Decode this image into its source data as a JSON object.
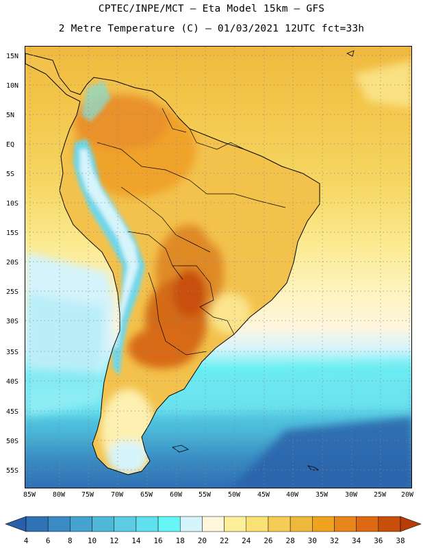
{
  "header": {
    "title": "CPTEC/INPE/MCT –  Eta Model 15km – GFS",
    "subtitle": "2 Metre Temperature (C) – 01/03/2021 12UTC fct=33h"
  },
  "map": {
    "region": "South America",
    "variable": "2 Metre Temperature",
    "units": "C",
    "lat_labels": [
      "15N",
      "10N",
      "5N",
      "EQ",
      "5S",
      "10S",
      "15S",
      "20S",
      "25S",
      "30S",
      "35S",
      "40S",
      "45S",
      "50S",
      "55S"
    ],
    "lon_labels": [
      "85W",
      "80W",
      "75W",
      "70W",
      "65W",
      "60W",
      "55W",
      "50W",
      "45W",
      "40W",
      "35W",
      "30W",
      "25W",
      "20W"
    ]
  },
  "legend": {
    "labels": [
      "4",
      "6",
      "8",
      "10",
      "12",
      "14",
      "16",
      "18",
      "20",
      "22",
      "24",
      "26",
      "28",
      "30",
      "32",
      "34",
      "36",
      "38"
    ],
    "colors": [
      "#2a5ea8",
      "#2f73b6",
      "#3a8bc4",
      "#45a3cf",
      "#4fb7d8",
      "#5ccbe3",
      "#60e0ee",
      "#66f6f6",
      "#d6f4fb",
      "#fff6dc",
      "#fdef9a",
      "#f9e174",
      "#f5cd56",
      "#edb93c",
      "#f0a31e",
      "#e6861c",
      "#dd6a12",
      "#c74f0a",
      "#b83c08"
    ]
  }
}
